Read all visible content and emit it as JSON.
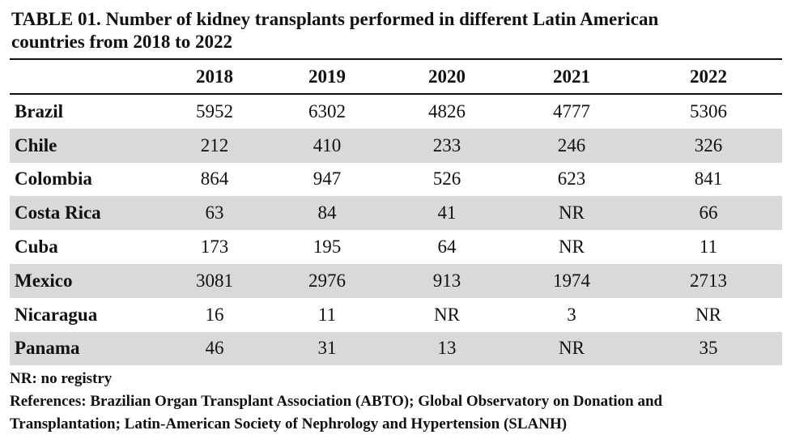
{
  "table": {
    "title_line1": "TABLE 01. Number of kidney transplants performed in different Latin American",
    "title_line2": "countries from 2018 to 2022",
    "columns": [
      "2018",
      "2019",
      "2020",
      "2021",
      "2022"
    ],
    "rows": [
      {
        "country": "Brazil",
        "values": [
          "5952",
          "6302",
          "4826",
          "4777",
          "5306"
        ]
      },
      {
        "country": "Chile",
        "values": [
          "212",
          "410",
          "233",
          "246",
          "326"
        ]
      },
      {
        "country": "Colombia",
        "values": [
          "864",
          "947",
          "526",
          "623",
          "841"
        ]
      },
      {
        "country": "Costa Rica",
        "values": [
          "63",
          "84",
          "41",
          "NR",
          "66"
        ]
      },
      {
        "country": "Cuba",
        "values": [
          "173",
          "195",
          "64",
          "NR",
          "11"
        ]
      },
      {
        "country": "Mexico",
        "values": [
          "3081",
          "2976",
          "913",
          "1974",
          "2713"
        ]
      },
      {
        "country": "Nicaragua",
        "values": [
          "16",
          "11",
          "NR",
          "3",
          "NR"
        ]
      },
      {
        "country": "Panama",
        "values": [
          "46",
          "31",
          "13",
          "NR",
          "35"
        ]
      }
    ],
    "shaded_color": "#d9d9d9",
    "note": "NR: no registry",
    "references_line1": "References: Brazilian Organ Transplant Association (ABTO); Global Observatory on Donation and",
    "references_line2": "Transplantation; Latin-American Society of Nephrology and Hypertension (SLANH)"
  }
}
